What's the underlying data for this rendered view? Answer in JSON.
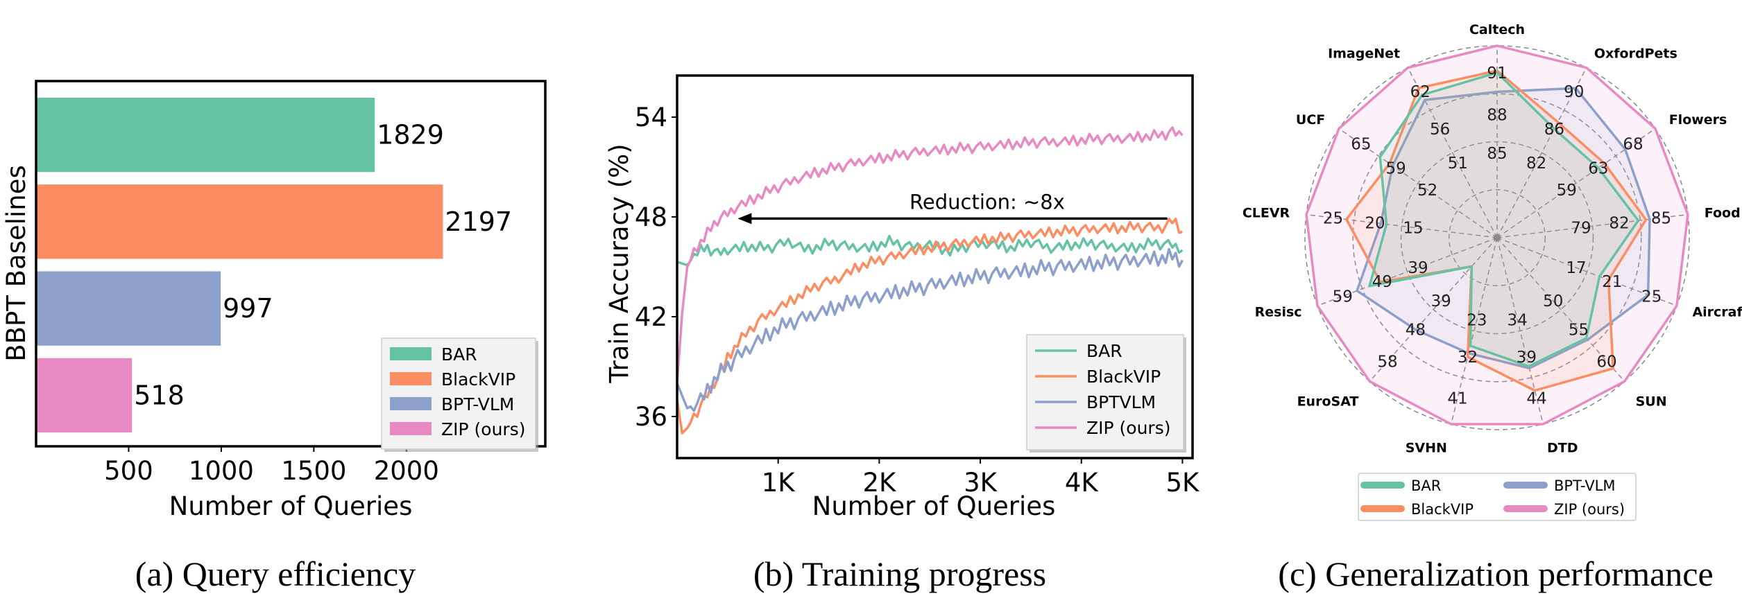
{
  "colors": {
    "BAR": "#66c2a5",
    "BlackVIP": "#fc8d62",
    "BPT": "#8da0cb",
    "ZIP": "#e78ac3"
  },
  "captions": {
    "a": "(a) Query efficiency",
    "b": "(b) Training progress",
    "c": "(c) Generalization performance"
  },
  "chart_data": [
    {
      "type": "bar",
      "orientation": "horizontal",
      "categories": [
        "BAR",
        "BlackVIP",
        "BPT-VLM",
        "ZIP (ours)"
      ],
      "values": [
        1829,
        2197,
        997,
        518
      ],
      "value_labels": [
        "1829",
        "2197",
        "997",
        "518"
      ],
      "xlabel": "Number of Queries",
      "ylabel": "BBPT Baselines",
      "xlim": [
        0,
        2750
      ],
      "xticks": [
        500,
        1000,
        1500,
        2000
      ],
      "xtick_labels": [
        "500",
        "1000",
        "1500",
        "2000"
      ],
      "legend": [
        "BAR",
        "BlackVIP",
        "BPT-VLM",
        "ZIP (ours)"
      ],
      "legend_position": "lower-right"
    },
    {
      "type": "line",
      "xlabel": "Number of Queries",
      "ylabel": "Train Accuracy (%)",
      "xlim": [
        0,
        5100
      ],
      "ylim": [
        33.5,
        56.5
      ],
      "xticks": [
        1000,
        2000,
        3000,
        4000,
        5000
      ],
      "xtick_labels": [
        "1K",
        "2K",
        "3K",
        "4K",
        "5K"
      ],
      "yticks": [
        36,
        42,
        48,
        54
      ],
      "ytick_labels": [
        "36",
        "42",
        "48",
        "54"
      ],
      "legend": [
        "BAR",
        "BlackVIP",
        "BPTVLM",
        "ZIP (ours)"
      ],
      "legend_position": "lower-right",
      "annotation": {
        "text": "Reduction: ~8x",
        "from_x": 4850,
        "to_x": 600,
        "y": 47.9
      },
      "series": [
        {
          "name": "BAR",
          "color_key": "BAR",
          "x": [
            0,
            100,
            200,
            300,
            400,
            500,
            700,
            900,
            1100,
            1300,
            1500,
            1700,
            1900,
            2100,
            2300,
            2500,
            2700,
            2900,
            3100,
            3300,
            3500,
            3700,
            3900,
            4100,
            4300,
            4500,
            4700,
            4900,
            5000
          ],
          "y": [
            45.3,
            45.1,
            45.9,
            46.1,
            45.8,
            46.0,
            46.2,
            46.1,
            46.5,
            46.0,
            46.4,
            46.2,
            46.1,
            46.5,
            46.2,
            46.3,
            45.9,
            46.3,
            46.4,
            46.1,
            46.5,
            46.1,
            46.3,
            46.4,
            46.2,
            46.1,
            46.4,
            46.3,
            46.0
          ]
        },
        {
          "name": "BlackVIP",
          "color_key": "BlackVIP",
          "x": [
            0,
            50,
            100,
            200,
            300,
            400,
            500,
            600,
            800,
            1000,
            1200,
            1400,
            1600,
            1800,
            2000,
            2200,
            2400,
            2600,
            2800,
            3000,
            3200,
            3400,
            3600,
            3800,
            4000,
            4200,
            4400,
            4600,
            4800,
            4900,
            5000
          ],
          "y": [
            37.0,
            35.0,
            35.3,
            36.3,
            37.3,
            38.3,
            39.5,
            40.4,
            41.7,
            42.5,
            43.2,
            43.9,
            44.3,
            45.0,
            45.4,
            45.7,
            46.0,
            46.2,
            46.4,
            46.6,
            46.7,
            46.9,
            47.0,
            47.1,
            47.2,
            47.3,
            47.3,
            47.4,
            47.3,
            47.8,
            47.1
          ]
        },
        {
          "name": "BPTVLM",
          "color_key": "BPT",
          "x": [
            0,
            100,
            200,
            300,
            400,
            500,
            600,
            800,
            1000,
            1200,
            1400,
            1600,
            1800,
            2000,
            2200,
            2400,
            2600,
            2800,
            3000,
            3200,
            3400,
            3600,
            3800,
            4000,
            4200,
            4400,
            4600,
            4800,
            4900,
            5000
          ],
          "y": [
            38.0,
            36.5,
            36.8,
            37.5,
            38.5,
            39.0,
            39.6,
            40.5,
            41.3,
            41.8,
            42.2,
            42.6,
            43.0,
            43.2,
            43.5,
            43.7,
            44.0,
            44.2,
            44.4,
            44.6,
            44.7,
            44.9,
            45.0,
            45.1,
            45.2,
            45.3,
            45.4,
            45.5,
            45.6,
            45.4
          ]
        },
        {
          "name": "ZIP (ours)",
          "color_key": "ZIP",
          "x": [
            0,
            50,
            100,
            200,
            300,
            400,
            500,
            600,
            800,
            1000,
            1200,
            1400,
            1600,
            1800,
            2000,
            2200,
            2400,
            2600,
            2800,
            3000,
            3200,
            3400,
            3600,
            3800,
            4000,
            4200,
            4400,
            4600,
            4800,
            4900,
            5000
          ],
          "y": [
            38.0,
            42.2,
            45.0,
            46.2,
            47.0,
            47.8,
            48.2,
            48.6,
            49.2,
            49.8,
            50.3,
            50.7,
            51.0,
            51.3,
            51.5,
            51.7,
            51.9,
            52.0,
            52.1,
            52.2,
            52.3,
            52.4,
            52.5,
            52.5,
            52.6,
            52.7,
            52.7,
            52.8,
            52.9,
            53.1,
            52.9
          ]
        }
      ]
    },
    {
      "type": "radar",
      "axes": [
        "Caltech",
        "OxfordPets",
        "Flowers",
        "Food",
        "Aircrafts",
        "SUN",
        "DTD",
        "SVHN",
        "EuroSAT",
        "Resisc",
        "CLEVR",
        "UCF",
        "ImageNet"
      ],
      "tick_labels": [
        [
          "85",
          "88",
          "91"
        ],
        [
          "82",
          "86",
          "90"
        ],
        [
          "59",
          "63",
          "68"
        ],
        [
          "79",
          "82",
          "85"
        ],
        [
          "17",
          "21",
          "25"
        ],
        [
          "50",
          "55",
          "60"
        ],
        [
          "34",
          "39",
          "44"
        ],
        [
          "23",
          "32",
          "41"
        ],
        [
          "39",
          "48",
          "58"
        ],
        [
          "39",
          "49",
          "59"
        ],
        [
          "15",
          "20",
          "25"
        ],
        [
          "52",
          "59",
          "65"
        ],
        [
          "51",
          "56",
          "62"
        ]
      ],
      "series": [
        {
          "name": "BAR",
          "color_key": "BAR",
          "values": [
            0.86,
            0.64,
            0.64,
            0.74,
            0.57,
            0.7,
            0.69,
            0.58,
            0.2,
            0.71,
            0.58,
            0.74,
            0.84
          ]
        },
        {
          "name": "BlackVIP",
          "color_key": "BlackVIP",
          "values": [
            0.87,
            0.68,
            0.68,
            0.78,
            0.62,
            0.91,
            0.82,
            0.64,
            0.2,
            0.65,
            0.79,
            0.68,
            0.88
          ]
        },
        {
          "name": "BPT-VLM",
          "color_key": "BPT",
          "values": [
            0.76,
            0.88,
            0.81,
            0.8,
            0.84,
            0.71,
            0.7,
            0.62,
            0.64,
            0.78,
            0.61,
            0.66,
            0.81
          ]
        },
        {
          "name": "ZIP (ours)",
          "color_key": "ZIP",
          "values": [
            1.0,
            1.0,
            1.0,
            1.0,
            1.0,
            1.0,
            1.0,
            1.0,
            1.0,
            1.0,
            1.0,
            1.0,
            1.0
          ]
        }
      ],
      "legend": [
        "BAR",
        "BPT-VLM",
        "BlackVIP",
        "ZIP (ours)"
      ],
      "legend_position": "bottom"
    }
  ]
}
